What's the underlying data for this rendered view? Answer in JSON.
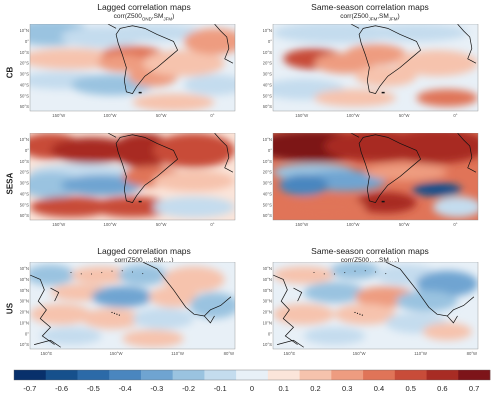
{
  "top_headers": {
    "left": {
      "title": "Lagged correlation maps",
      "corr": "corr(Z500",
      "sub1": "OND",
      "sep": ",SM",
      "sub2": "JFM",
      "end": ")"
    },
    "right": {
      "title": "Same-season correlation maps",
      "corr": "corr(Z500",
      "sub1": "JFM",
      "sep": ",SM",
      "sub2": "JFM",
      "end": ")"
    }
  },
  "bottom_headers": {
    "left": {
      "title": "Lagged correlation maps",
      "corr": "corr(Z500",
      "sub1": "AMJ",
      "sep": ",SM",
      "sub2": "JAS",
      "end": ")"
    },
    "right": {
      "title": "Same-season correlation maps",
      "corr": "corr(Z500",
      "sub1": "JAS",
      "sep": ",SM",
      "sub2": "JAS",
      "end": ")"
    }
  },
  "row_labels": [
    "CB",
    "SESA",
    "US"
  ],
  "sa_lat_ticks": [
    "10°N",
    "0°",
    "10°S",
    "20°S",
    "30°S",
    "40°S",
    "50°S",
    "60°S"
  ],
  "sa_lon_ticks": [
    "150°W",
    "100°W",
    "50°W",
    "0°"
  ],
  "us_lat_ticks": [
    "60°N",
    "50°N",
    "40°N",
    "30°N",
    "20°N",
    "10°N",
    "0°",
    "10°S"
  ],
  "us_lon_ticks": [
    "150°E",
    "150°W",
    "110°W",
    "80°W"
  ],
  "colorbar": {
    "labels": [
      "-0.7",
      "-0.6",
      "-0.5",
      "-0.4",
      "-0.3",
      "-0.2",
      "-0.1",
      "0",
      "0.1",
      "0.2",
      "0.3",
      "0.4",
      "0.5",
      "0.6",
      "0.7"
    ],
    "colors": [
      "#08306b",
      "#16508c",
      "#2c6aa8",
      "#4a86bf",
      "#6fa4d1",
      "#9ac3e0",
      "#c4dcee",
      "#e8f0f7",
      "#fbe5da",
      "#f6c3ad",
      "#ee9c80",
      "#e07458",
      "#c84c39",
      "#a82c24",
      "#7d1419"
    ]
  }
}
